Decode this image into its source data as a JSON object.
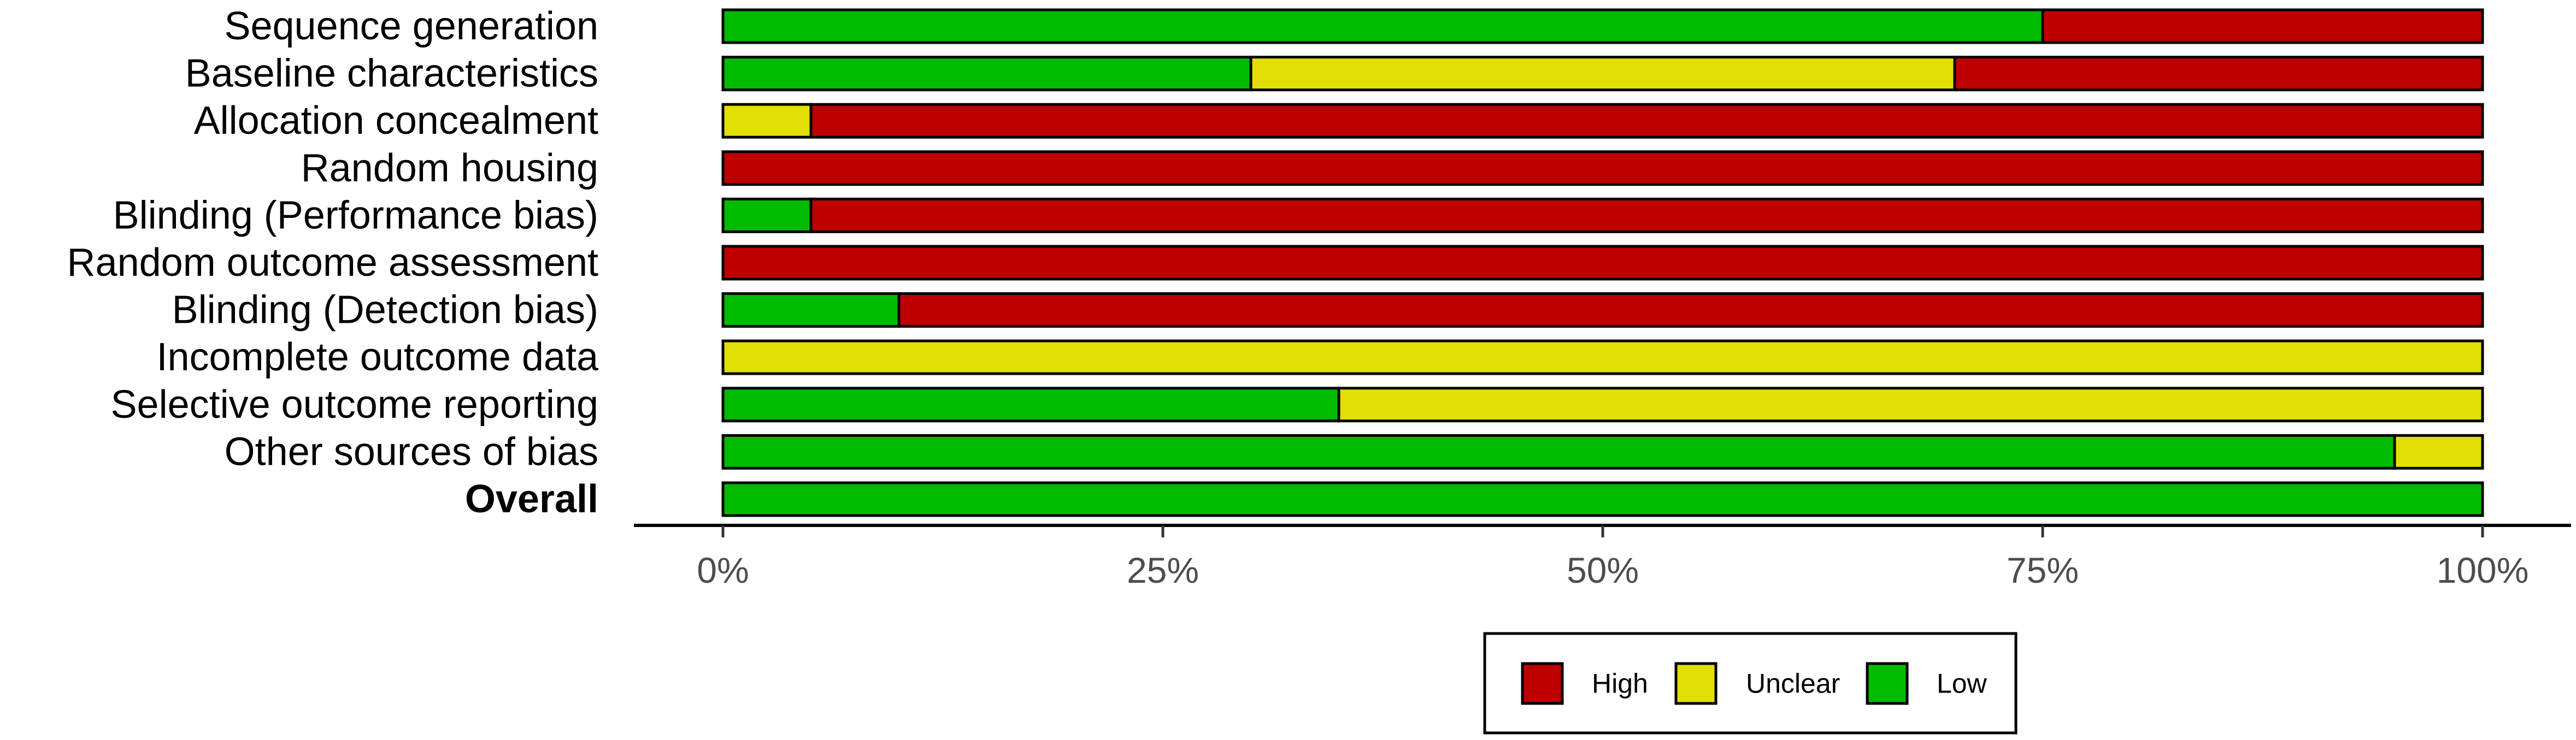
{
  "chart_data": {
    "type": "bar",
    "orientation": "horizontal",
    "stacked": true,
    "categories": [
      "Sequence generation",
      "Baseline characteristics",
      "Allocation concealment",
      "Random housing",
      "Blinding (Performance bias)",
      "Random outcome assessment",
      "Blinding (Detection bias)",
      "Incomplete outcome data",
      "Selective outcome reporting",
      "Other sources of bias",
      "Overall"
    ],
    "bold_categories": [
      "Overall"
    ],
    "series": [
      {
        "name": "Low",
        "color": "#00BB00",
        "values": [
          75,
          30,
          0,
          0,
          5,
          0,
          10,
          0,
          35,
          95,
          100
        ]
      },
      {
        "name": "Unclear",
        "color": "#E2DF07",
        "values": [
          0,
          40,
          5,
          0,
          0,
          0,
          0,
          100,
          65,
          5,
          0
        ]
      },
      {
        "name": "High",
        "color": "#BF0000",
        "values": [
          25,
          30,
          95,
          100,
          95,
          100,
          90,
          0,
          0,
          0,
          0
        ]
      }
    ],
    "xlim": [
      0,
      100
    ],
    "x_ticks": [
      0,
      25,
      50,
      75,
      100
    ],
    "x_tick_labels": [
      "0%",
      "25%",
      "50%",
      "75%",
      "100%"
    ],
    "grid": false,
    "legend": {
      "position": "bottom",
      "entries": [
        "High",
        "Unclear",
        "Low"
      ]
    }
  }
}
